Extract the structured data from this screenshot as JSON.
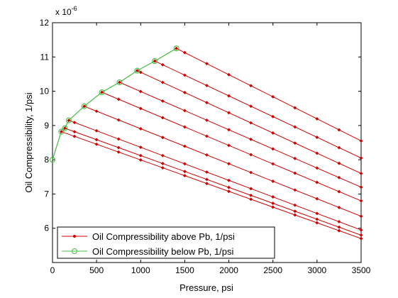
{
  "chart_data": {
    "type": "line",
    "title": "",
    "xlabel": "Pressure, psi",
    "ylabel": "Oil Compressibility, 1/psi",
    "y_scale_label": "x 10",
    "y_scale_exponent": "-6",
    "xlim": [
      0,
      3500
    ],
    "ylim": [
      5,
      12
    ],
    "x_ticks": [
      0,
      500,
      1000,
      1500,
      2000,
      2500,
      3000,
      3500
    ],
    "y_ticks": [
      6,
      7,
      8,
      9,
      10,
      11,
      12
    ],
    "x_tick_labels": [
      "0",
      "500",
      "1000",
      "1500",
      "2000",
      "2500",
      "3000",
      "3500"
    ],
    "y_tick_labels": [
      "6",
      "7",
      "8",
      "9",
      "10",
      "11",
      "12"
    ],
    "grid": false,
    "legend_position": "bottom-left",
    "colors": {
      "above": "#cc0000",
      "below": "#44bb44"
    },
    "legend": [
      "Oil Compressibility above Pb, 1/psi",
      "Oil Compressibility below Pb, 1/psi"
    ],
    "series": [
      {
        "name": "Oil Compressibility below Pb, 1/psi",
        "x": [
          0,
          100,
          140,
          185,
          360,
          560,
          760,
          960,
          1160,
          1405
        ],
        "y": [
          8.0,
          8.82,
          8.92,
          9.15,
          9.56,
          9.97,
          10.26,
          10.6,
          10.88,
          11.25
        ]
      }
    ],
    "above_pb_lines": [
      {
        "pb": 100,
        "x": [
          100,
          3500
        ],
        "y": [
          8.82,
          5.7
        ]
      },
      {
        "pb": 140,
        "x": [
          140,
          3500
        ],
        "y": [
          8.92,
          5.8
        ]
      },
      {
        "pb": 185,
        "x": [
          185,
          3500
        ],
        "y": [
          9.15,
          5.95
        ]
      },
      {
        "pb": 360,
        "x": [
          360,
          3500
        ],
        "y": [
          9.56,
          6.35
        ]
      },
      {
        "pb": 560,
        "x": [
          560,
          3500
        ],
        "y": [
          9.97,
          6.8
        ]
      },
      {
        "pb": 760,
        "x": [
          760,
          3500
        ],
        "y": [
          10.26,
          7.2
        ]
      },
      {
        "pb": 960,
        "x": [
          960,
          3500
        ],
        "y": [
          10.6,
          7.6
        ]
      },
      {
        "pb": 1160,
        "x": [
          1160,
          3500
        ],
        "y": [
          10.88,
          8.05
        ]
      },
      {
        "pb": 1405,
        "x": [
          1405,
          3500
        ],
        "y": [
          11.25,
          8.55
        ]
      }
    ]
  }
}
